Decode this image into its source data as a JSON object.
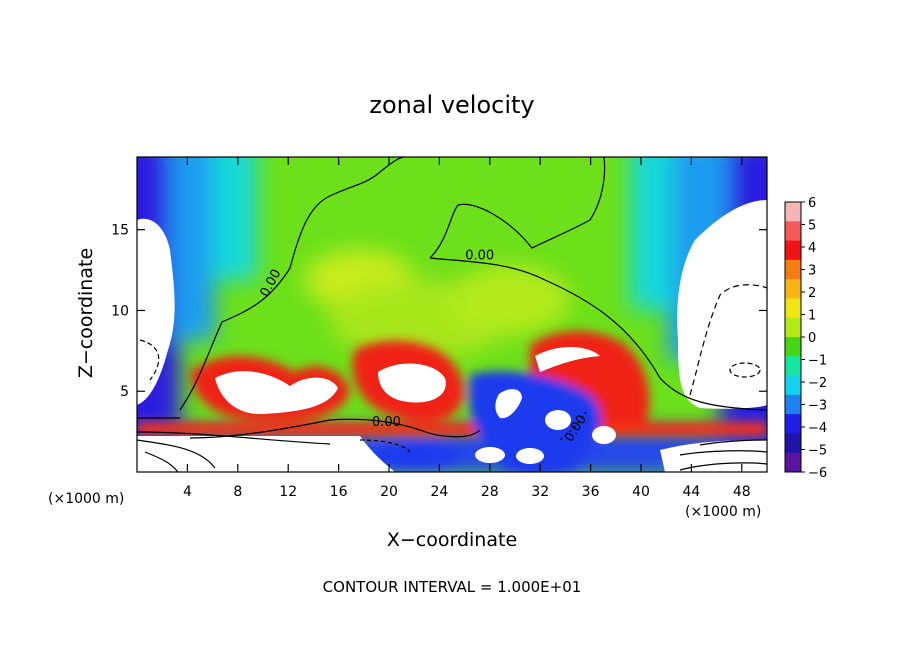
{
  "chart_data": {
    "type": "heatmap",
    "title": "zonal velocity",
    "xlabel": "X−coordinate",
    "ylabel": "Z−coordinate",
    "x_unit": "(×1000 m)",
    "y_unit": "(×1000 m)",
    "xlim": [
      0,
      50
    ],
    "ylim": [
      0,
      19.5
    ],
    "x_ticks": [
      4,
      8,
      12,
      16,
      20,
      24,
      28,
      32,
      36,
      40,
      44,
      48
    ],
    "y_ticks": [
      5,
      10,
      15
    ],
    "colorbar": {
      "levels": [
        6,
        5,
        4,
        3,
        2,
        1,
        0,
        -1,
        -2,
        -3,
        -4,
        -5,
        -6
      ],
      "labels": [
        "6",
        "5",
        "4",
        "3",
        "2",
        "1",
        "0",
        "−1",
        "−2",
        "−3",
        "−4",
        "−5",
        "−6"
      ],
      "colors": [
        "#f7b4b4",
        "#f45a5a",
        "#ef1414",
        "#f57d14",
        "#fab414",
        "#f0e614",
        "#b4eb14",
        "#46d714",
        "#14e6a0",
        "#14d2f0",
        "#1e82f0",
        "#1e1ee6",
        "#1e14aa",
        "#5a14a0"
      ]
    },
    "contour_labels": [
      {
        "text": "0.00",
        "x": 10.6,
        "y": 11.7,
        "rotate": -62
      },
      {
        "text": "0.00",
        "x": 27.2,
        "y": 13.4,
        "rotate": 0
      },
      {
        "text": "0.00",
        "x": 19.8,
        "y": 3.1,
        "rotate": 0
      },
      {
        "text": "0.00",
        "x": 34.8,
        "y": 2.7,
        "rotate": -58
      }
    ],
    "contour_interval": "CONTOUR INTERVAL = 1.000E+01"
  }
}
